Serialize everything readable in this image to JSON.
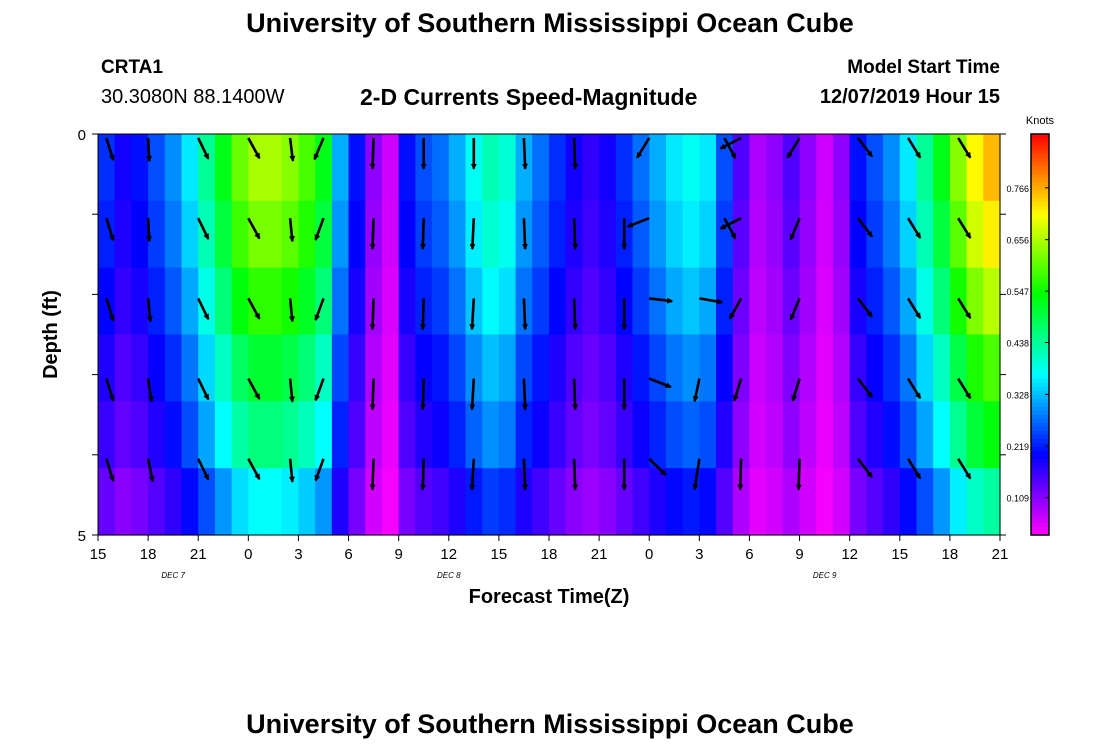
{
  "header": {
    "title": "University of Southern Mississippi Ocean Cube",
    "station_id": "CRTA1",
    "station_coords": "30.3080N 88.1400W",
    "plot_title": "2-D Currents Speed-Magnitude",
    "model_start_label": "Model Start Time",
    "model_start_value": "12/07/2019 Hour 15"
  },
  "footer": {
    "title": "University of Southern Mississippi Ocean Cube"
  },
  "chart_data": {
    "type": "heatmap",
    "title": "2-D Currents Speed-Magnitude",
    "xlabel": "Forecast Time(Z)",
    "ylabel": "Depth (ft)",
    "x_tick_labels": [
      "15",
      "18",
      "21",
      "0",
      "3",
      "6",
      "9",
      "12",
      "15",
      "18",
      "21",
      "0",
      "3",
      "6",
      "9",
      "12",
      "15",
      "18",
      "21"
    ],
    "x_range_hours": [
      0,
      54
    ],
    "date_labels": [
      {
        "text": "DEC 7",
        "hour": 4.5
      },
      {
        "text": "DEC 8",
        "hour": 21
      },
      {
        "text": "DEC 9",
        "hour": 43.5
      }
    ],
    "y_tick_labels": [
      "0",
      "5"
    ],
    "ylim": [
      0,
      5
    ],
    "units_label": "Knots",
    "colorbar_ticks": [
      "0.766",
      "0.656",
      "0.547",
      "0.438",
      "0.328",
      "0.219",
      "0.109"
    ],
    "colorbar_tick_values": [
      0.766,
      0.656,
      0.547,
      0.438,
      0.328,
      0.219,
      0.109
    ],
    "colorbar_range": [
      0.03,
      0.88
    ],
    "n_time_steps": 54,
    "depth_levels": 5,
    "speed_profile_knots": [
      0.22,
      0.18,
      0.2,
      0.24,
      0.28,
      0.34,
      0.42,
      0.5,
      0.58,
      0.62,
      0.62,
      0.6,
      0.56,
      0.5,
      0.3,
      0.2,
      0.1,
      0.06,
      0.2,
      0.24,
      0.26,
      0.3,
      0.36,
      0.4,
      0.38,
      0.3,
      0.26,
      0.22,
      0.18,
      0.16,
      0.18,
      0.22,
      0.26,
      0.3,
      0.34,
      0.36,
      0.34,
      0.24,
      0.14,
      0.08,
      0.1,
      0.14,
      0.1,
      0.06,
      0.1,
      0.2,
      0.24,
      0.28,
      0.34,
      0.42,
      0.5,
      0.6,
      0.68,
      0.72
    ],
    "depth_factors": [
      1.05,
      1.0,
      0.92,
      0.82,
      0.74,
      0.6
    ],
    "vectors": [
      {
        "hour": 0.5,
        "rows": [
          [
            0.3,
            0.6
          ],
          [
            0.3,
            0.6
          ],
          [
            0.3,
            0.6
          ],
          [
            0.3,
            0.6
          ],
          [
            0.3,
            0.6
          ]
        ]
      },
      {
        "hour": 3,
        "rows": [
          [
            0.05,
            0.6
          ],
          [
            0.05,
            0.6
          ],
          [
            0.1,
            0.6
          ],
          [
            0.15,
            0.6
          ],
          [
            0.2,
            0.6
          ]
        ]
      },
      {
        "hour": 6,
        "rows": [
          [
            0.45,
            0.6
          ],
          [
            0.45,
            0.6
          ],
          [
            0.45,
            0.6
          ],
          [
            0.45,
            0.6
          ],
          [
            0.45,
            0.6
          ]
        ]
      },
      {
        "hour": 9,
        "rows": [
          [
            0.5,
            0.6
          ],
          [
            0.5,
            0.6
          ],
          [
            0.5,
            0.6
          ],
          [
            0.5,
            0.6
          ],
          [
            0.5,
            0.6
          ]
        ]
      },
      {
        "hour": 11.5,
        "rows": [
          [
            0.12,
            0.6
          ],
          [
            0.1,
            0.6
          ],
          [
            0.1,
            0.6
          ],
          [
            0.1,
            0.6
          ],
          [
            0.1,
            0.6
          ]
        ]
      },
      {
        "hour": 13.5,
        "rows": [
          [
            -0.4,
            0.6
          ],
          [
            -0.35,
            0.6
          ],
          [
            -0.35,
            0.6
          ],
          [
            -0.35,
            0.6
          ],
          [
            -0.35,
            0.6
          ]
        ]
      },
      {
        "hour": 16.5,
        "rows": [
          [
            -0.04,
            0.8
          ],
          [
            -0.04,
            0.8
          ],
          [
            -0.04,
            0.8
          ],
          [
            -0.04,
            0.8
          ],
          [
            -0.04,
            0.8
          ]
        ]
      },
      {
        "hour": 19.5,
        "rows": [
          [
            0,
            0.8
          ],
          [
            -0.03,
            0.8
          ],
          [
            -0.03,
            0.8
          ],
          [
            -0.03,
            0.8
          ],
          [
            -0.03,
            0.8
          ]
        ]
      },
      {
        "hour": 22.5,
        "rows": [
          [
            0,
            0.8
          ],
          [
            -0.05,
            0.8
          ],
          [
            -0.06,
            0.8
          ],
          [
            -0.06,
            0.8
          ],
          [
            -0.06,
            0.8
          ]
        ]
      },
      {
        "hour": 25.5,
        "rows": [
          [
            0.04,
            0.8
          ],
          [
            0.04,
            0.8
          ],
          [
            0.04,
            0.8
          ],
          [
            0.04,
            0.8
          ],
          [
            0.04,
            0.8
          ]
        ]
      },
      {
        "hour": 28.5,
        "rows": [
          [
            0.04,
            0.8
          ],
          [
            0.04,
            0.8
          ],
          [
            0.04,
            0.8
          ],
          [
            0.04,
            0.8
          ],
          [
            0.04,
            0.8
          ]
        ]
      },
      {
        "hour": 31.5,
        "rows": [
          [
            null,
            0
          ],
          [
            0,
            0.8
          ],
          [
            0,
            0.8
          ],
          [
            0,
            0.8
          ],
          [
            0,
            0.8
          ]
        ]
      },
      {
        "hour": 33,
        "rows": [
          [
            -0.55,
            0.6
          ],
          [
            -1.2,
            0.6
          ],
          [
            1.45,
            0.6
          ],
          [
            1.2,
            0.6
          ],
          [
            0.8,
            0.6
          ]
        ]
      },
      {
        "hour": 36,
        "rows": [
          [
            null,
            0
          ],
          [
            null,
            0
          ],
          [
            1.4,
            0.6
          ],
          [
            -0.2,
            0.6
          ],
          [
            -0.15,
            0.8
          ]
        ]
      },
      {
        "hour": 37.5,
        "rows": [
          [
            0.5,
            0.6
          ],
          [
            0.5,
            0.6
          ],
          [
            null,
            0
          ],
          [
            null,
            0
          ],
          [
            null,
            0
          ]
        ]
      },
      {
        "hour": 38.5,
        "rows": [
          [
            -1.1,
            0.6
          ],
          [
            -1.1,
            0.6
          ],
          [
            -0.5,
            0.6
          ],
          [
            -0.3,
            0.6
          ],
          [
            -0.03,
            0.8
          ]
        ]
      },
      {
        "hour": 42,
        "rows": [
          [
            -0.55,
            0.6
          ],
          [
            -0.4,
            0.6
          ],
          [
            -0.4,
            0.6
          ],
          [
            -0.3,
            0.6
          ],
          [
            -0.03,
            0.8
          ]
        ]
      },
      {
        "hour": 45.5,
        "rows": [
          [
            0.65,
            0.6
          ],
          [
            0.65,
            0.6
          ],
          [
            0.65,
            0.6
          ],
          [
            0.65,
            0.6
          ],
          [
            0.65,
            0.6
          ]
        ]
      },
      {
        "hour": 48.5,
        "rows": [
          [
            0.55,
            0.6
          ],
          [
            0.55,
            0.6
          ],
          [
            0.55,
            0.6
          ],
          [
            0.55,
            0.6
          ],
          [
            0.55,
            0.6
          ]
        ]
      },
      {
        "hour": 51.5,
        "rows": [
          [
            0.55,
            0.6
          ],
          [
            0.55,
            0.6
          ],
          [
            0.55,
            0.6
          ],
          [
            0.55,
            0.6
          ],
          [
            0.55,
            0.6
          ]
        ]
      }
    ]
  }
}
